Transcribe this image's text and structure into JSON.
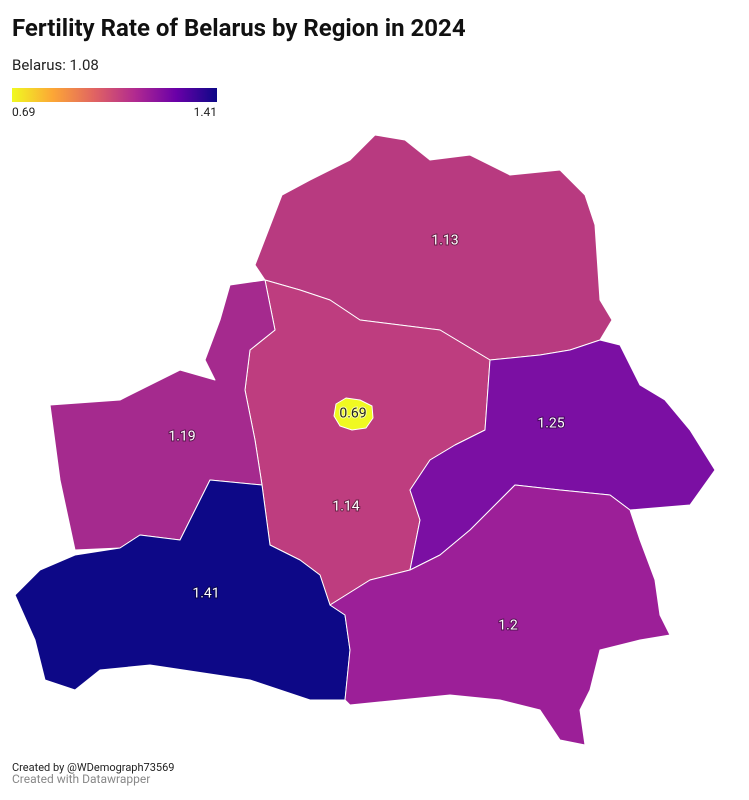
{
  "header": {
    "title": "Fertility Rate of Belarus by Region in 2024",
    "subtitle": "Belarus: 1.08"
  },
  "legend": {
    "min": 0.69,
    "max": 1.41,
    "colors": [
      "#f0f921",
      "#fca636",
      "#e16462",
      "#b12a90",
      "#6a00a8",
      "#0d0887"
    ]
  },
  "regions": [
    {
      "value": 1.13,
      "color": "#b83a80"
    },
    {
      "value": 1.14,
      "color": "#be3d7f"
    },
    {
      "value": 0.69,
      "color": "#f0f921"
    },
    {
      "value": 1.19,
      "color": "#a52a8e"
    },
    {
      "value": 1.41,
      "color": "#0d0887"
    },
    {
      "value": 1.25,
      "color": "#7b0fa3"
    },
    {
      "value": 1.2,
      "color": "#9c1f98"
    }
  ],
  "footer": {
    "credit": "Created by @WDemograph73569",
    "tool": "Created with Datawrapper"
  }
}
